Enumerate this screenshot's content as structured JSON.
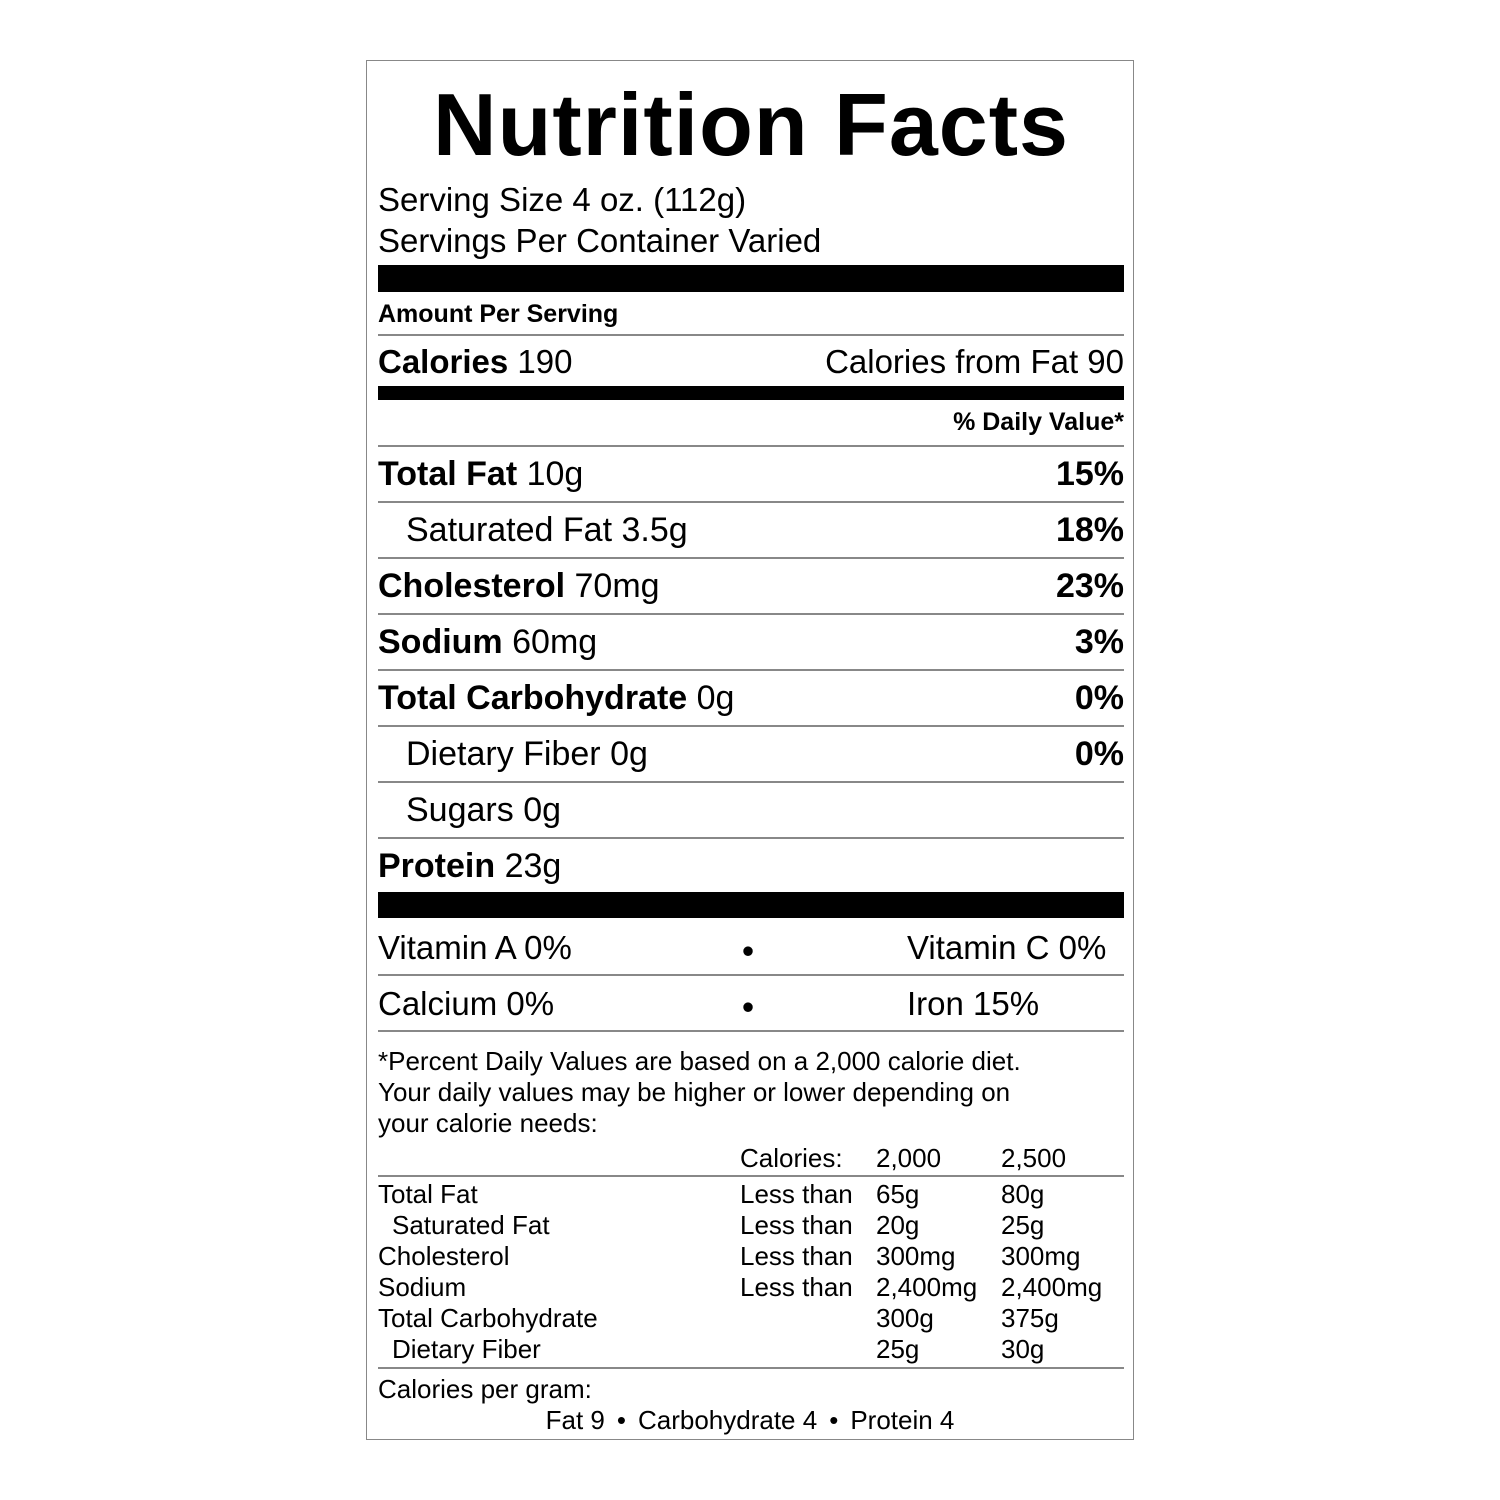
{
  "title": "Nutrition Facts",
  "serving_size": "Serving Size 4 oz. (112g)",
  "servings_per_container": "Servings Per Container Varied",
  "amount_per_serving": "Amount Per Serving",
  "calories": {
    "label": "Calories",
    "amount": "190"
  },
  "calories_from_fat": "Calories from Fat 90",
  "daily_value_header": "% Daily Value*",
  "nutrients": [
    {
      "name": "Total Fat",
      "amount": "10g",
      "dv": "15%",
      "sub": false
    },
    {
      "name": "Saturated Fat",
      "amount": "3.5g",
      "dv": "18%",
      "sub": true
    },
    {
      "name": "Cholesterol",
      "amount": "70mg",
      "dv": "23%",
      "sub": false
    },
    {
      "name": "Sodium",
      "amount": "60mg",
      "dv": "3%",
      "sub": false
    },
    {
      "name": "Total Carbohydrate",
      "amount": "0g",
      "dv": "0%",
      "sub": false
    },
    {
      "name": "Dietary Fiber",
      "amount": "0g",
      "dv": "0%",
      "sub": true
    },
    {
      "name": "Sugars",
      "amount": "0g",
      "sub": true
    },
    {
      "name": "Protein",
      "amount": "23g",
      "sub": false
    }
  ],
  "vitamins": [
    [
      "Vitamin A 0%",
      "Vitamin C 0%"
    ],
    [
      "Calcium 0%",
      "Iron 15%"
    ]
  ],
  "footnote": [
    "*Percent Daily Values are based on a 2,000 calorie diet.",
    "Your daily values may be higher or lower depending on",
    "your calorie needs:"
  ],
  "reference_table": {
    "header": [
      "Calories:",
      "2,000",
      "2,500"
    ],
    "rows": [
      {
        "name": "Total Fat",
        "sub": false,
        "qualifier": "Less than",
        "values": [
          "65g",
          "80g"
        ]
      },
      {
        "name": "Saturated Fat",
        "sub": true,
        "qualifier": "Less than",
        "values": [
          "20g",
          "25g"
        ]
      },
      {
        "name": "Cholesterol",
        "sub": false,
        "qualifier": "Less than",
        "values": [
          "300mg",
          "300mg"
        ]
      },
      {
        "name": "Sodium",
        "sub": false,
        "qualifier": "Less than",
        "values": [
          "2,400mg",
          "2,400mg"
        ]
      },
      {
        "name": "Total Carbohydrate",
        "sub": false,
        "values": [
          "300g",
          "375g"
        ]
      },
      {
        "name": "Dietary Fiber",
        "sub": true,
        "values": [
          "25g",
          "30g"
        ]
      }
    ]
  },
  "calories_per_gram": {
    "label": "Calories per gram:",
    "items": [
      "Fat 9",
      "Carbohydrate 4",
      "Protein 4"
    ]
  }
}
